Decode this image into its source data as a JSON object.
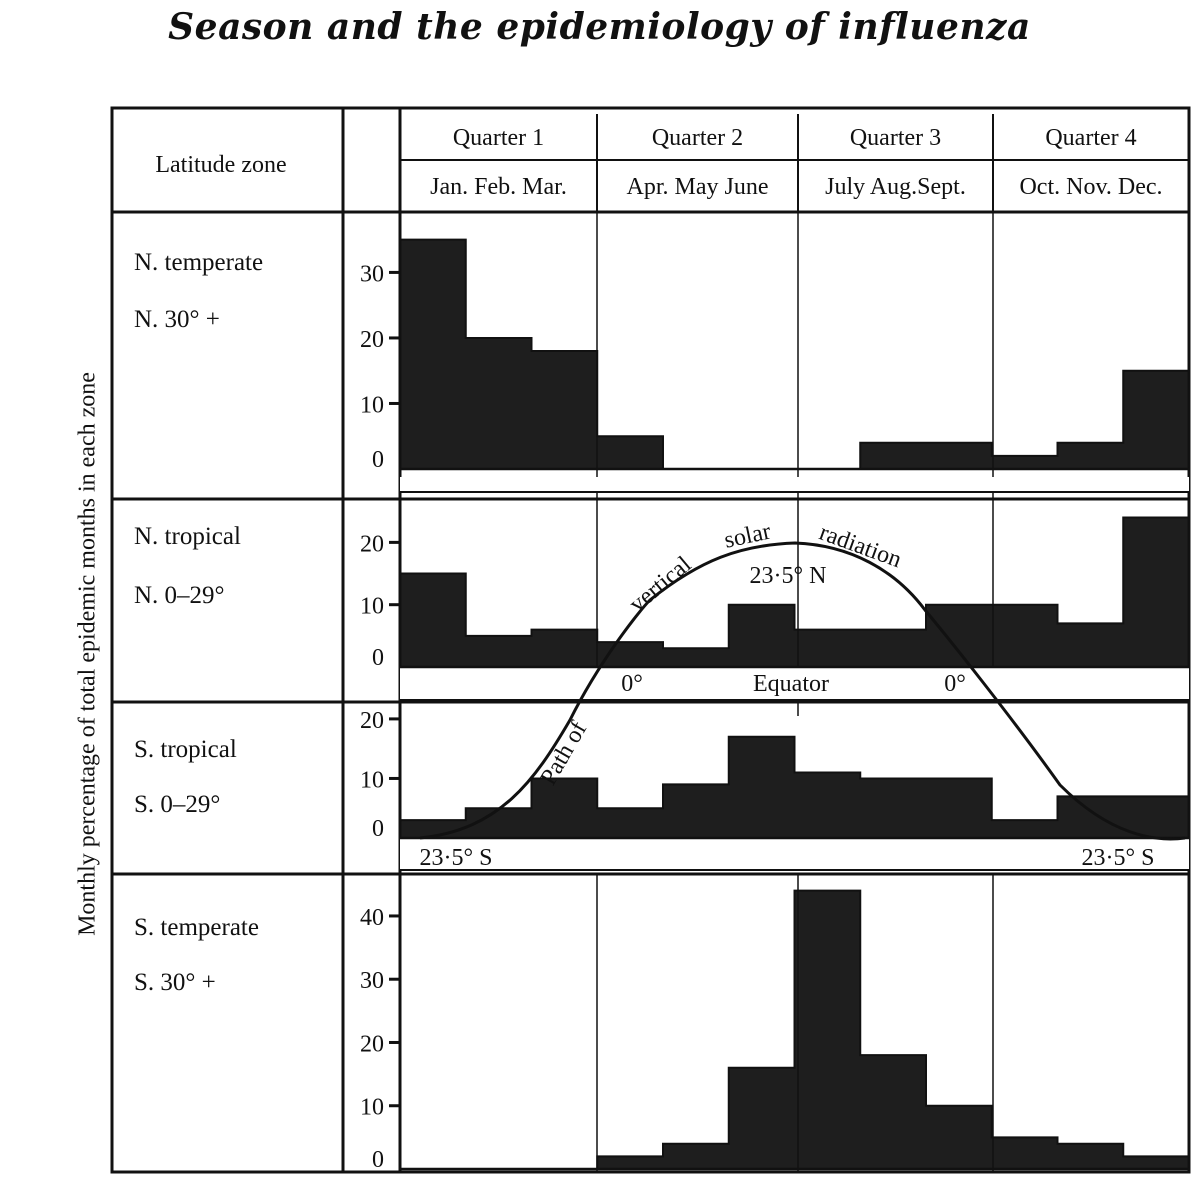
{
  "title": "Season and the epidemiology of influenza",
  "y_axis_title": "Monthly percentage of total epidemic months in each zone",
  "header": {
    "latitude_zone_label": "Latitude zone",
    "quarters": [
      {
        "label": "Quarter 1",
        "months": "Jan. Feb. Mar."
      },
      {
        "label": "Quarter 2",
        "months": "Apr. May June"
      },
      {
        "label": "Quarter 3",
        "months": "July Aug.Sept."
      },
      {
        "label": "Quarter 4",
        "months": "Oct. Nov. Dec."
      }
    ]
  },
  "overlay": {
    "path_text_1": "Path of",
    "path_text_2": "vertical",
    "path_text_3": "solar",
    "path_text_4": "radiation",
    "north_label": "23·5° N",
    "equator_label": "Equator",
    "equator_left": "0°",
    "equator_right": "0°",
    "south_left": "23·5° S",
    "south_right": "23·5° S"
  },
  "colors": {
    "bar_fill": "#1e1e1e",
    "line": "#111111",
    "background": "#ffffff"
  },
  "chart_data": [
    {
      "type": "bar",
      "zone": "N. temperate",
      "range": "N. 30° +",
      "categories": [
        "Jan",
        "Feb",
        "Mar",
        "Apr",
        "May",
        "Jun",
        "Jul",
        "Aug",
        "Sep",
        "Oct",
        "Nov",
        "Dec"
      ],
      "values": [
        35,
        20,
        18,
        5,
        0,
        0,
        0,
        4,
        4,
        2,
        4,
        15
      ],
      "ylim": [
        0,
        38
      ],
      "yticks": [
        0,
        10,
        20,
        30
      ]
    },
    {
      "type": "bar",
      "zone": "N. tropical",
      "range": "N. 0–29°",
      "categories": [
        "Jan",
        "Feb",
        "Mar",
        "Apr",
        "May",
        "Jun",
        "Jul",
        "Aug",
        "Sep",
        "Oct",
        "Nov",
        "Dec"
      ],
      "values": [
        15,
        5,
        6,
        4,
        3,
        10,
        6,
        6,
        10,
        10,
        7,
        24
      ],
      "ylim": [
        0,
        26
      ],
      "yticks": [
        0,
        10,
        20
      ]
    },
    {
      "type": "bar",
      "zone": "S. tropical",
      "range": "S. 0–29°",
      "categories": [
        "Jan",
        "Feb",
        "Mar",
        "Apr",
        "May",
        "Jun",
        "Jul",
        "Aug",
        "Sep",
        "Oct",
        "Nov",
        "Dec"
      ],
      "values": [
        3,
        5,
        10,
        5,
        9,
        17,
        11,
        10,
        10,
        3,
        7,
        7
      ],
      "ylim": [
        0,
        22
      ],
      "yticks": [
        0,
        10,
        20
      ]
    },
    {
      "type": "bar",
      "zone": "S. temperate",
      "range": "S. 30° +",
      "categories": [
        "Jan",
        "Feb",
        "Mar",
        "Apr",
        "May",
        "Jun",
        "Jul",
        "Aug",
        "Sep",
        "Oct",
        "Nov",
        "Dec"
      ],
      "values": [
        0,
        0,
        0,
        2,
        4,
        16,
        44,
        18,
        10,
        5,
        4,
        2
      ],
      "ylim": [
        0,
        46
      ],
      "yticks": [
        0,
        10,
        20,
        30,
        40
      ]
    }
  ]
}
